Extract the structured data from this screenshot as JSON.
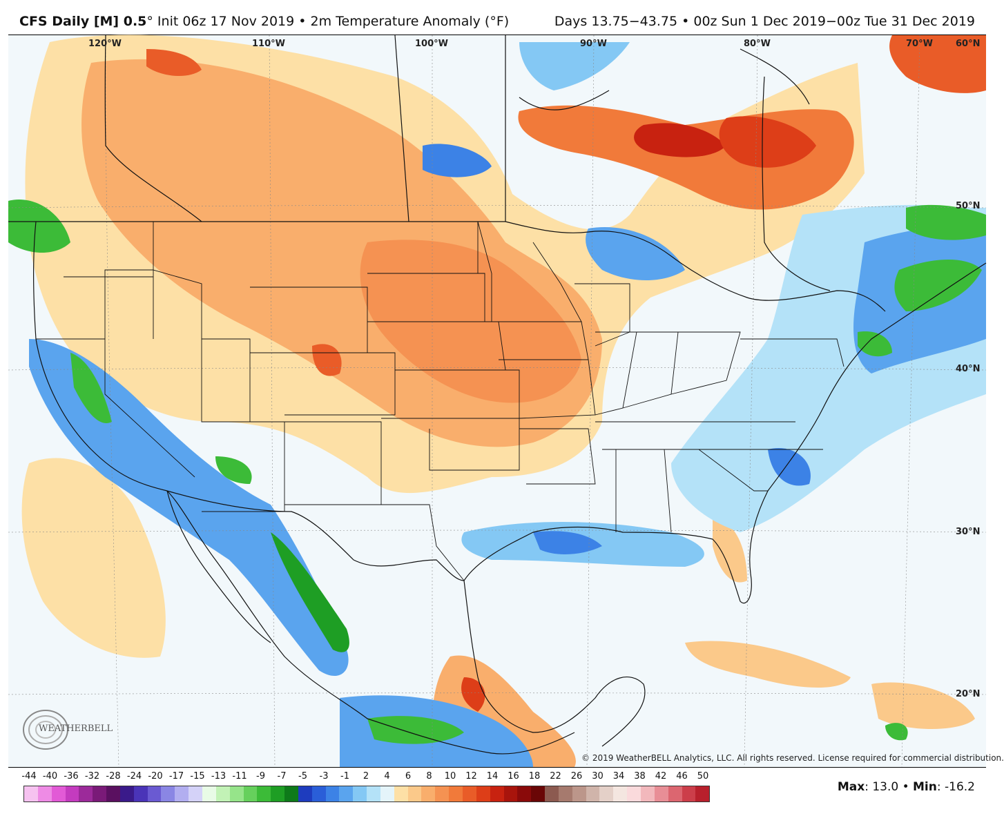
{
  "header": {
    "model_label": "CFS Daily [M] 0.5",
    "init_label": "° Init 06z 17 Nov 2019 • 2m Temperature Anomaly (°F)",
    "valid_label": "Days 13.75−43.75 • 00z Sun 1 Dec 2019−00z Tue 31 Dec 2019"
  },
  "map": {
    "longitude_labels": [
      "120°W",
      "110°W",
      "100°W",
      "90°W",
      "80°W",
      "70°W"
    ],
    "latitude_labels": [
      "60°N",
      "50°N",
      "40°N",
      "30°N",
      "20°N"
    ],
    "copyright": "© 2019 WeatherBELL Analytics, LLC. All rights reserved. License required for commercial distribution.",
    "logo_text": "WEATHERBELL",
    "anomaly_regions": [
      {
        "region": "Northern Plains / Upper Midwest",
        "sign": "warm",
        "level": "moderate"
      },
      {
        "region": "Canadian Prairies",
        "sign": "warm",
        "level": "moderate"
      },
      {
        "region": "Hudson Bay / Ontario",
        "sign": "warm",
        "level": "strong"
      },
      {
        "region": "Southwest US / Baja",
        "sign": "cold",
        "level": "moderate"
      },
      {
        "region": "Gulf Coast",
        "sign": "cold",
        "level": "weak"
      },
      {
        "region": "Northeast US / New England",
        "sign": "cold",
        "level": "moderate"
      },
      {
        "region": "Western Mexico coast",
        "sign": "cold",
        "level": "strong"
      },
      {
        "region": "Northern Labrador",
        "sign": "warm",
        "level": "strong"
      }
    ]
  },
  "colorbar": {
    "labels": [
      "-44",
      "-40",
      "-36",
      "-32",
      "-28",
      "-24",
      "-20",
      "-17",
      "-15",
      "-13",
      "-11",
      "-9",
      "-7",
      "-5",
      "-3",
      "-1",
      "2",
      "4",
      "6",
      "8",
      "10",
      "12",
      "14",
      "16",
      "18",
      "22",
      "26",
      "30",
      "34",
      "38",
      "42",
      "46",
      "50"
    ],
    "colors": [
      "#f6c2f0",
      "#ee8be5",
      "#e25ad6",
      "#c43bbf",
      "#9c2a9a",
      "#7a1a78",
      "#5a1060",
      "#3a1a8a",
      "#4a34b8",
      "#6a5ad2",
      "#8a86e4",
      "#b2aef0",
      "#d4d2f8",
      "#e8fbe6",
      "#c2f2b6",
      "#96e48a",
      "#66d05c",
      "#3cbb38",
      "#1e9e24",
      "#0e7a1a",
      "#1e3cbe",
      "#2a5ed8",
      "#3c82e6",
      "#5aa4ee",
      "#84c8f4",
      "#b4e2f8",
      "#e4f4fa",
      "#fde0a6",
      "#fbc98a",
      "#f9ae6c",
      "#f59252",
      "#f17a3a",
      "#e95c28",
      "#dd3e18",
      "#c82210",
      "#a8140c",
      "#8a0a0a",
      "#6a0606",
      "#8c5a50",
      "#a67a6e",
      "#bc968a",
      "#d0b4aa",
      "#e4d0c8",
      "#f4e6e0",
      "#fadadc",
      "#f2b8bc",
      "#e88e96",
      "#dc6670",
      "#cc3e4a",
      "#b8202c"
    ]
  },
  "stats": {
    "max_label": "Max",
    "max_value": ": 13.0 • ",
    "min_label": "Min",
    "min_value": ": -16.2"
  }
}
